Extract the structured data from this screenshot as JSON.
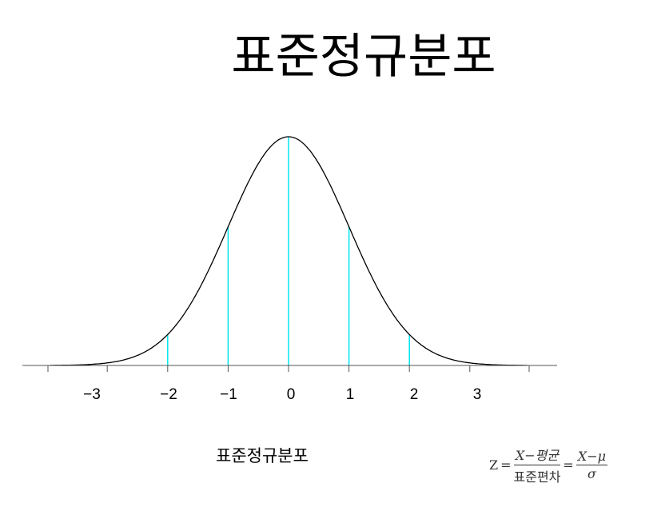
{
  "title": "표준정규분포",
  "caption": "표준정규분포",
  "formula": {
    "lhs": "Z",
    "eq": "=",
    "frac1_num": "X−평균",
    "frac1_den": "표준편차",
    "frac2_num": "X−μ",
    "frac2_den": "σ"
  },
  "chart_data": {
    "type": "line",
    "title": "표준정규분포",
    "xlabel": "",
    "ylabel": "",
    "function": "standard normal density",
    "xlim": [
      -4,
      4
    ],
    "x_ticks": [
      -4,
      -3,
      -2,
      -1,
      0,
      1,
      2,
      3,
      4
    ],
    "tick_labels": [
      "-3",
      "-2",
      "-1",
      "0",
      "1",
      "2",
      "3"
    ],
    "vertical_lines_at": [
      -2,
      -1,
      0,
      1,
      2
    ],
    "colors": {
      "curve": "#000000",
      "vertical_lines": "#00e5ee",
      "axis": "#555555"
    },
    "grid": false
  }
}
